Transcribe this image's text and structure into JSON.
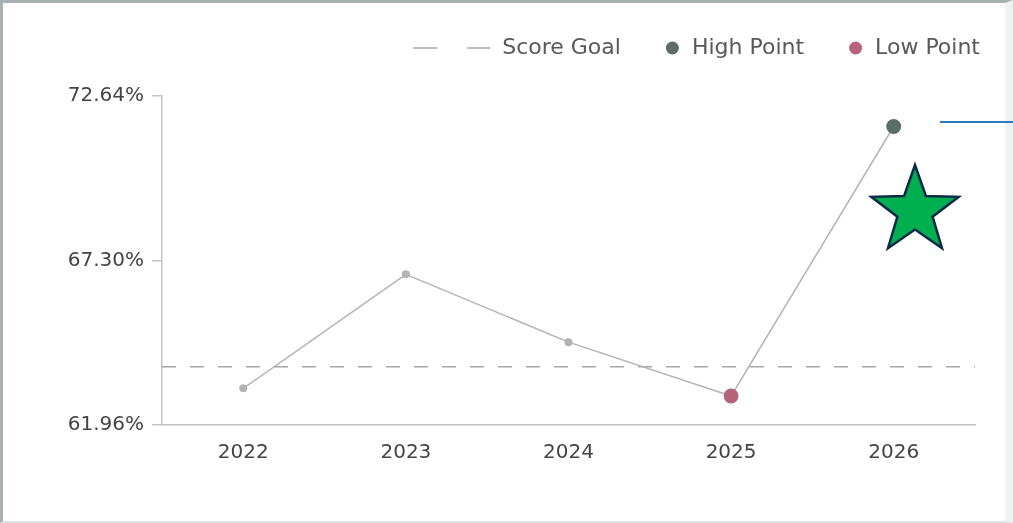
{
  "chart_data": {
    "type": "line",
    "categories": [
      "2022",
      "2023",
      "2024",
      "2025",
      "2026"
    ],
    "series": [
      {
        "color": "#b3b3b3",
        "values": [
          63.15,
          66.85,
          64.65,
          62.9,
          71.65
        ],
        "marker": "circle"
      },
      {
        "name": "High Point",
        "type": "scatter",
        "values": [
          null,
          null,
          null,
          null,
          71.65
        ],
        "color": "#5b6f66",
        "marker": "circle"
      },
      {
        "name": "Low Point",
        "type": "scatter",
        "values": [
          null,
          null,
          null,
          62.9,
          null
        ],
        "color": "#b5647c",
        "marker": "circle"
      }
    ],
    "ylim": [
      61.96,
      72.64
    ],
    "yticks": [
      {
        "value": 61.96,
        "label": "61.96%"
      },
      {
        "value": 67.3,
        "label": "67.30%"
      },
      {
        "value": 72.64,
        "label": "72.64%"
      }
    ],
    "ref_lines": [
      {
        "axis": "y",
        "value": 63.85,
        "label": "Score Goal",
        "color": "#a6a6a6",
        "line_style": "dashed"
      }
    ],
    "grid": false,
    "legend": "top right"
  }
}
